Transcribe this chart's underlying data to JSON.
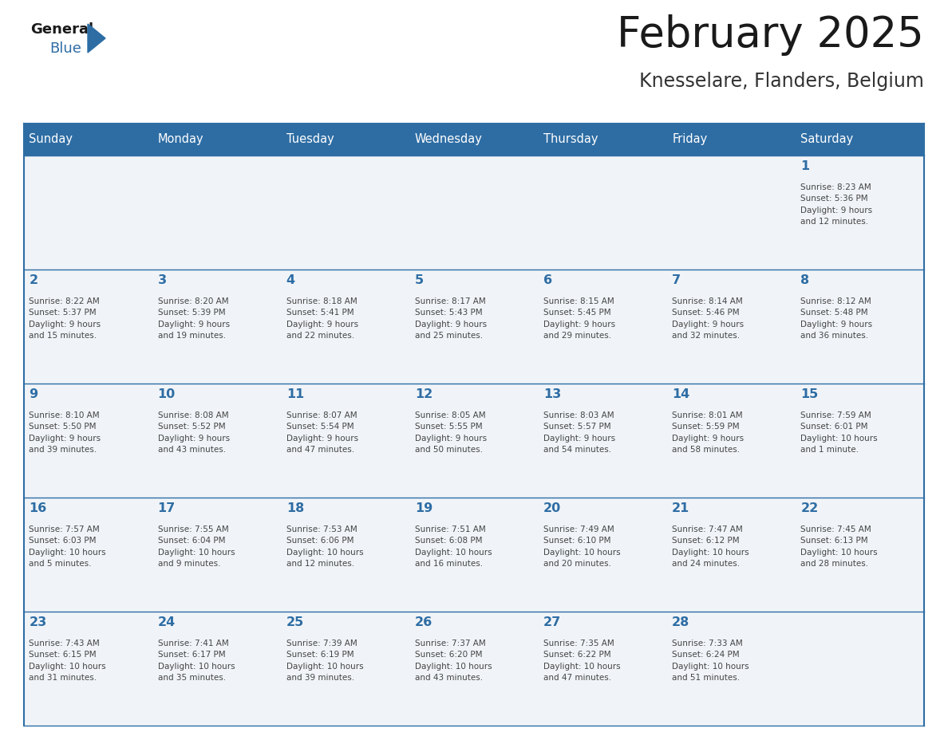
{
  "title": "February 2025",
  "subtitle": "Knesselare, Flanders, Belgium",
  "header_bg": "#2E6DA4",
  "header_text": "#FFFFFF",
  "cell_bg": "#F0F4F8",
  "day_number_color": "#2E6DA4",
  "info_text_color": "#444444",
  "grid_line_color": "#2E6DA4",
  "days_of_week": [
    "Sunday",
    "Monday",
    "Tuesday",
    "Wednesday",
    "Thursday",
    "Friday",
    "Saturday"
  ],
  "weeks": [
    [
      {
        "day": null,
        "info": null
      },
      {
        "day": null,
        "info": null
      },
      {
        "day": null,
        "info": null
      },
      {
        "day": null,
        "info": null
      },
      {
        "day": null,
        "info": null
      },
      {
        "day": null,
        "info": null
      },
      {
        "day": 1,
        "info": "Sunrise: 8:23 AM\nSunset: 5:36 PM\nDaylight: 9 hours\nand 12 minutes."
      }
    ],
    [
      {
        "day": 2,
        "info": "Sunrise: 8:22 AM\nSunset: 5:37 PM\nDaylight: 9 hours\nand 15 minutes."
      },
      {
        "day": 3,
        "info": "Sunrise: 8:20 AM\nSunset: 5:39 PM\nDaylight: 9 hours\nand 19 minutes."
      },
      {
        "day": 4,
        "info": "Sunrise: 8:18 AM\nSunset: 5:41 PM\nDaylight: 9 hours\nand 22 minutes."
      },
      {
        "day": 5,
        "info": "Sunrise: 8:17 AM\nSunset: 5:43 PM\nDaylight: 9 hours\nand 25 minutes."
      },
      {
        "day": 6,
        "info": "Sunrise: 8:15 AM\nSunset: 5:45 PM\nDaylight: 9 hours\nand 29 minutes."
      },
      {
        "day": 7,
        "info": "Sunrise: 8:14 AM\nSunset: 5:46 PM\nDaylight: 9 hours\nand 32 minutes."
      },
      {
        "day": 8,
        "info": "Sunrise: 8:12 AM\nSunset: 5:48 PM\nDaylight: 9 hours\nand 36 minutes."
      }
    ],
    [
      {
        "day": 9,
        "info": "Sunrise: 8:10 AM\nSunset: 5:50 PM\nDaylight: 9 hours\nand 39 minutes."
      },
      {
        "day": 10,
        "info": "Sunrise: 8:08 AM\nSunset: 5:52 PM\nDaylight: 9 hours\nand 43 minutes."
      },
      {
        "day": 11,
        "info": "Sunrise: 8:07 AM\nSunset: 5:54 PM\nDaylight: 9 hours\nand 47 minutes."
      },
      {
        "day": 12,
        "info": "Sunrise: 8:05 AM\nSunset: 5:55 PM\nDaylight: 9 hours\nand 50 minutes."
      },
      {
        "day": 13,
        "info": "Sunrise: 8:03 AM\nSunset: 5:57 PM\nDaylight: 9 hours\nand 54 minutes."
      },
      {
        "day": 14,
        "info": "Sunrise: 8:01 AM\nSunset: 5:59 PM\nDaylight: 9 hours\nand 58 minutes."
      },
      {
        "day": 15,
        "info": "Sunrise: 7:59 AM\nSunset: 6:01 PM\nDaylight: 10 hours\nand 1 minute."
      }
    ],
    [
      {
        "day": 16,
        "info": "Sunrise: 7:57 AM\nSunset: 6:03 PM\nDaylight: 10 hours\nand 5 minutes."
      },
      {
        "day": 17,
        "info": "Sunrise: 7:55 AM\nSunset: 6:04 PM\nDaylight: 10 hours\nand 9 minutes."
      },
      {
        "day": 18,
        "info": "Sunrise: 7:53 AM\nSunset: 6:06 PM\nDaylight: 10 hours\nand 12 minutes."
      },
      {
        "day": 19,
        "info": "Sunrise: 7:51 AM\nSunset: 6:08 PM\nDaylight: 10 hours\nand 16 minutes."
      },
      {
        "day": 20,
        "info": "Sunrise: 7:49 AM\nSunset: 6:10 PM\nDaylight: 10 hours\nand 20 minutes."
      },
      {
        "day": 21,
        "info": "Sunrise: 7:47 AM\nSunset: 6:12 PM\nDaylight: 10 hours\nand 24 minutes."
      },
      {
        "day": 22,
        "info": "Sunrise: 7:45 AM\nSunset: 6:13 PM\nDaylight: 10 hours\nand 28 minutes."
      }
    ],
    [
      {
        "day": 23,
        "info": "Sunrise: 7:43 AM\nSunset: 6:15 PM\nDaylight: 10 hours\nand 31 minutes."
      },
      {
        "day": 24,
        "info": "Sunrise: 7:41 AM\nSunset: 6:17 PM\nDaylight: 10 hours\nand 35 minutes."
      },
      {
        "day": 25,
        "info": "Sunrise: 7:39 AM\nSunset: 6:19 PM\nDaylight: 10 hours\nand 39 minutes."
      },
      {
        "day": 26,
        "info": "Sunrise: 7:37 AM\nSunset: 6:20 PM\nDaylight: 10 hours\nand 43 minutes."
      },
      {
        "day": 27,
        "info": "Sunrise: 7:35 AM\nSunset: 6:22 PM\nDaylight: 10 hours\nand 47 minutes."
      },
      {
        "day": 28,
        "info": "Sunrise: 7:33 AM\nSunset: 6:24 PM\nDaylight: 10 hours\nand 51 minutes."
      },
      {
        "day": null,
        "info": null
      }
    ]
  ]
}
